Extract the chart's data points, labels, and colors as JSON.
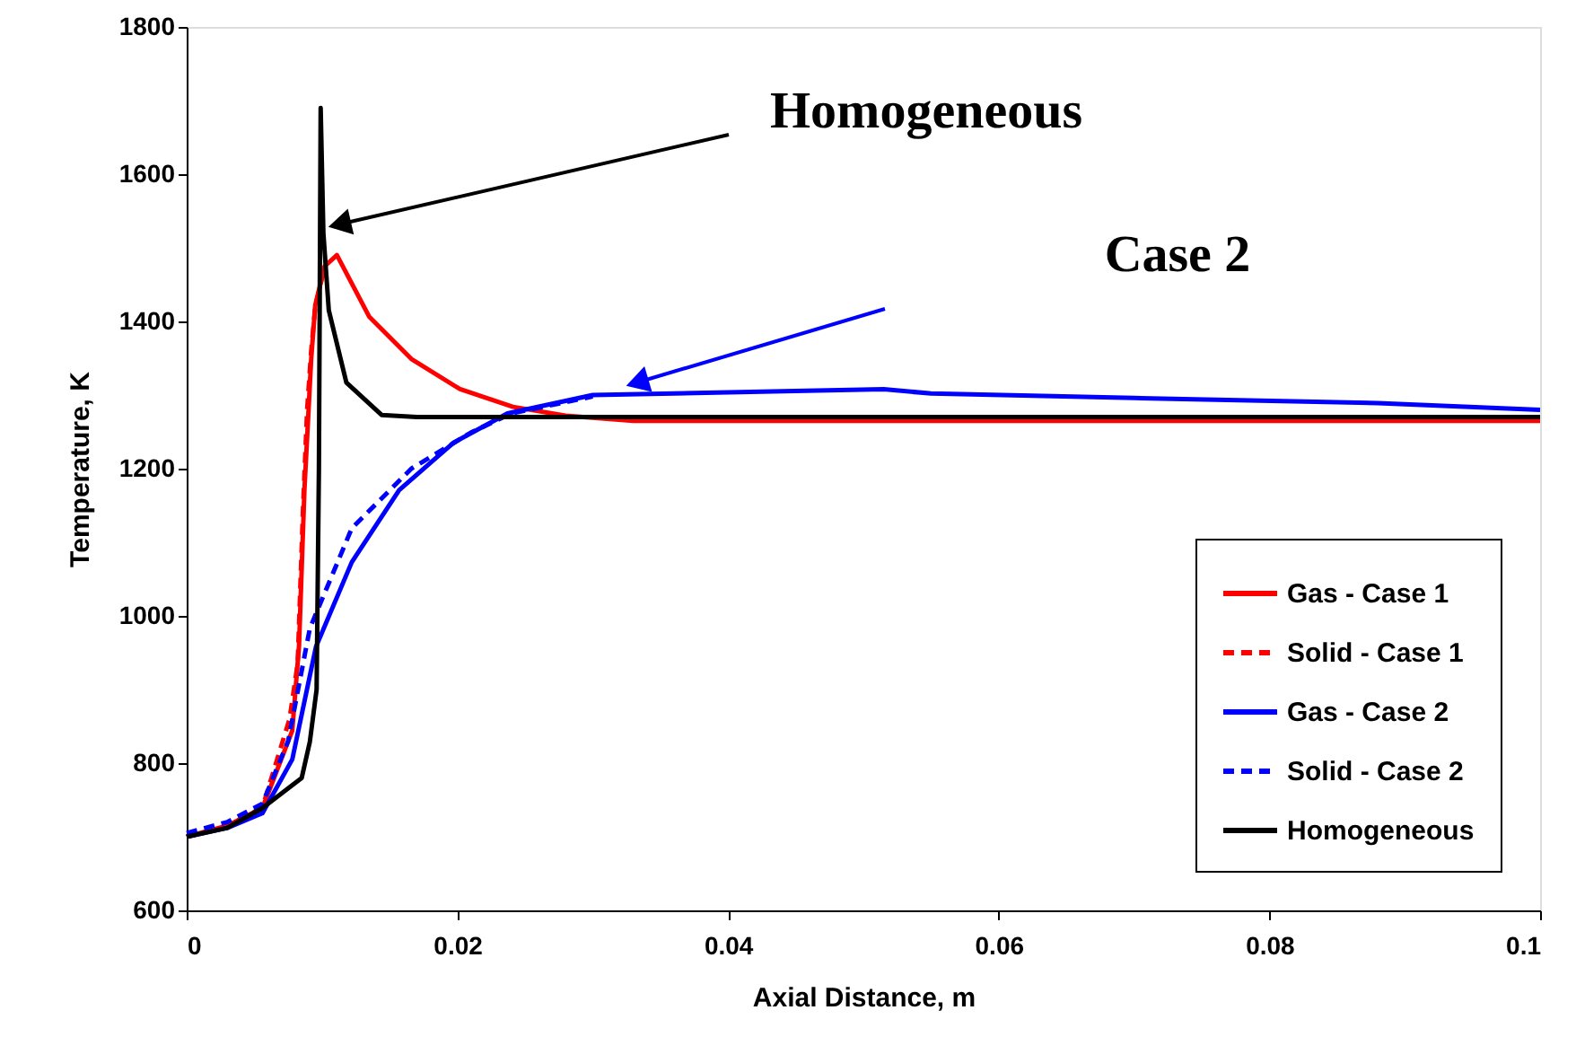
{
  "chart_data": {
    "type": "line",
    "xlabel": "Axial Distance, m",
    "ylabel": "Temperature, K",
    "xlim": [
      0,
      0.1
    ],
    "xticks": [
      0,
      0.02,
      0.04,
      0.06,
      0.08,
      0.1
    ],
    "ylim": [
      600,
      1800
    ],
    "yticks": [
      600,
      800,
      1000,
      1200,
      1400,
      1600,
      1800
    ],
    "grid": false,
    "legend": "bottom right",
    "marker": "none",
    "annotations": [
      {
        "text": "Homogeneous",
        "x": 0.0113,
        "y": 1532
      },
      "Case 2"
    ],
    "series": [
      {
        "name": "Gas - Case 1",
        "color": "#ff0000",
        "line_style": "solid",
        "x": [
          0,
          0.003,
          0.0056,
          0.0078,
          0.0083,
          0.0087,
          0.0092,
          0.0095,
          0.0102,
          0.0111,
          0.0135,
          0.0166,
          0.0202,
          0.0241,
          0.028,
          0.033,
          0.1
        ],
        "values": [
          700,
          715,
          739,
          844,
          959,
          1171,
          1349,
          1422,
          1475,
          1490,
          1406,
          1349,
          1308,
          1284,
          1272,
          1265,
          1265
        ]
      },
      {
        "name": "Solid - Case 1",
        "color": "#ff0000",
        "line_style": "dashed",
        "x": [
          0,
          0.003,
          0.0056,
          0.0076,
          0.0082,
          0.0086,
          0.0089,
          0.0092,
          0.0095,
          0.0102
        ],
        "values": [
          700,
          715,
          740,
          860,
          935,
          1147,
          1280,
          1360,
          1420,
          1475
        ]
      },
      {
        "name": "Gas - Case 2",
        "color": "#0000ff",
        "line_style": "solid",
        "x": [
          0,
          0.003,
          0.0056,
          0.0078,
          0.00955,
          0.0122,
          0.0157,
          0.0197,
          0.0237,
          0.03,
          0.0515,
          0.055,
          0.07,
          0.088,
          0.1
        ],
        "values": [
          700,
          712,
          732,
          805,
          958,
          1073,
          1171,
          1235,
          1275,
          1300,
          1308,
          1302,
          1296,
          1289,
          1280
        ]
      },
      {
        "name": "Solid - Case 2",
        "color": "#0000ff",
        "line_style": "dashed",
        "x": [
          0,
          0.003,
          0.0056,
          0.0075,
          0.0091,
          0.0122,
          0.0166,
          0.021,
          0.024,
          0.03
        ],
        "values": [
          705,
          720,
          745,
          830,
          983,
          1119,
          1200,
          1249,
          1275,
          1298
        ]
      },
      {
        "name": "Homogeneous",
        "color": "#000000",
        "line_style": "solid",
        "x": [
          0,
          0.003,
          0.0056,
          0.0085,
          0.0091,
          0.0096,
          0.00977,
          0.0099,
          0.0101,
          0.0105,
          0.0118,
          0.0144,
          0.017,
          0.1
        ],
        "values": [
          700,
          712,
          739,
          780,
          829,
          900,
          1200,
          1690,
          1520,
          1415,
          1317,
          1273,
          1270,
          1270
        ]
      }
    ]
  }
}
